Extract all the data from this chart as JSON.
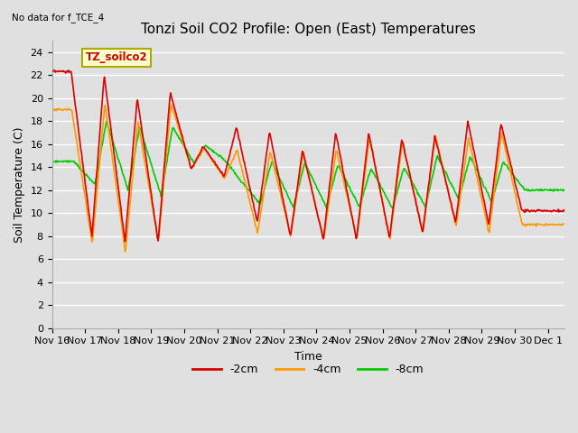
{
  "title": "Tonzi Soil CO2 Profile: Open (East) Temperatures",
  "subtitle": "No data for f_TCE_4",
  "ylabel": "Soil Temperature (C)",
  "xlabel": "Time",
  "annotation": "TZ_soilco2",
  "ylim": [
    0,
    25
  ],
  "yticks": [
    0,
    2,
    4,
    6,
    8,
    10,
    12,
    14,
    16,
    18,
    20,
    22,
    24
  ],
  "xtick_labels": [
    "Nov 16",
    "Nov 17",
    "Nov 18",
    "Nov 19",
    "Nov 20",
    "Nov 21",
    "Nov 22",
    "Nov 23",
    "Nov 24",
    "Nov 25",
    "Nov 26",
    "Nov 27",
    "Nov 28",
    "Nov 29",
    "Nov 30",
    "Dec 1"
  ],
  "legend_labels": [
    "-2cm",
    "-4cm",
    "-8cm"
  ],
  "legend_colors": [
    "#dd0000",
    "#ff9900",
    "#00cc00"
  ],
  "bg_color": "#e0e0e0",
  "plot_bg_color": "#e0e0e0",
  "grid_color": "#ffffff",
  "title_fontsize": 11,
  "axis_fontsize": 9,
  "tick_fontsize": 8,
  "line_width": 1.2,
  "n_days": 15.5,
  "hours_per_day": 24,
  "day_peaks_2cm": [
    22.3,
    8.0,
    22.0,
    7.5,
    20.0,
    7.5,
    20.5,
    13.8,
    15.8,
    13.2,
    17.5,
    9.2,
    17.1,
    8.0,
    15.5,
    7.7,
    17.0,
    7.7,
    17.0,
    7.8,
    16.5,
    8.3,
    16.7,
    9.2,
    18.0,
    9.0,
    17.8,
    10.2
  ],
  "day_peaks_4cm": [
    19.0,
    7.3,
    19.5,
    6.6,
    18.0,
    7.5,
    19.5,
    13.8,
    15.6,
    13.0,
    15.5,
    8.2,
    15.4,
    8.0,
    15.2,
    7.7,
    15.5,
    7.8,
    16.5,
    7.8,
    16.2,
    8.3,
    16.8,
    8.8,
    16.5,
    8.2,
    17.0,
    9.0
  ],
  "day_peaks_8cm": [
    14.5,
    12.5,
    18.0,
    12.0,
    17.5,
    11.5,
    17.5,
    14.3,
    15.9,
    14.4,
    13.0,
    10.8,
    14.5,
    10.5,
    14.4,
    10.5,
    14.2,
    10.5,
    13.9,
    10.4,
    14.0,
    10.5,
    15.0,
    11.2,
    14.9,
    11.0,
    14.5,
    12.0
  ],
  "peak_hour": 14,
  "trough_hour": 5
}
